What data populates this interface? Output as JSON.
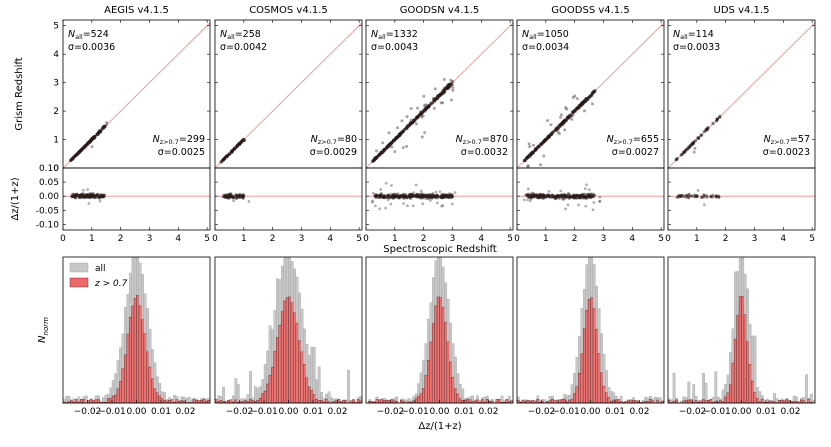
{
  "figure": {
    "shared_x_label": "Spectroscopic Redshift",
    "hist_x_label": "Δz/(1+z)"
  },
  "chart_data": [
    {
      "type": "scatter",
      "field": "AEGIS v4.1.5",
      "title": "AEGIS v4.1.5",
      "xlabel": "Spectroscopic Redshift",
      "ylabel": "Grism Redshift",
      "xlim": [
        0,
        5.1
      ],
      "ylim": [
        0,
        5.2
      ],
      "n_all_value": "524",
      "sigma_all": "σ=0.0036",
      "n_hi_value": "299",
      "sigma_hi": "σ=0.0025",
      "resid_ylabel": "Δz/(1+z)",
      "resid_ylim": [
        -0.12,
        0.1
      ],
      "hist_legend": [
        "all",
        "z > 0.7"
      ],
      "hist_ylabel": "N_norm",
      "hist_xlim": [
        -0.03,
        0.03
      ]
    },
    {
      "type": "scatter",
      "field": "COSMOS v4.1.5",
      "title": "COSMOS v4.1.5",
      "xlim": [
        0,
        5.1
      ],
      "ylim": [
        0,
        5.2
      ],
      "n_all_value": "258",
      "sigma_all": "σ=0.0042",
      "n_hi_value": "80",
      "sigma_hi": "σ=0.0029",
      "resid_ylim": [
        -0.12,
        0.1
      ],
      "hist_xlim": [
        -0.03,
        0.03
      ]
    },
    {
      "type": "scatter",
      "field": "GOODSN v4.1.5",
      "title": "GOODSN v4.1.5",
      "xlim": [
        0,
        5.1
      ],
      "ylim": [
        0,
        5.2
      ],
      "n_all_value": "1332",
      "sigma_all": "σ=0.0043",
      "n_hi_value": "870",
      "sigma_hi": "σ=0.0032",
      "resid_ylim": [
        -0.12,
        0.1
      ],
      "hist_xlim": [
        -0.03,
        0.03
      ]
    },
    {
      "type": "scatter",
      "field": "GOODSS v4.1.5",
      "title": "GOODSS v4.1.5",
      "xlim": [
        0,
        5.1
      ],
      "ylim": [
        0,
        5.2
      ],
      "n_all_value": "1050",
      "sigma_all": "σ=0.0034",
      "n_hi_value": "655",
      "sigma_hi": "σ=0.0027",
      "resid_ylim": [
        -0.12,
        0.1
      ],
      "hist_xlim": [
        -0.03,
        0.03
      ]
    },
    {
      "type": "scatter",
      "field": "UDS v4.1.5",
      "title": "UDS v4.1.5",
      "xlim": [
        0,
        5.1
      ],
      "ylim": [
        0,
        5.2
      ],
      "n_all_value": "114",
      "sigma_all": "σ=0.0033",
      "n_hi_value": "57",
      "sigma_hi": "σ=0.0023",
      "resid_ylim": [
        -0.12,
        0.1
      ],
      "hist_xlim": [
        -0.03,
        0.03
      ]
    }
  ],
  "ticks": {
    "scatter_y": [
      "0",
      "1",
      "2",
      "3",
      "4",
      "5"
    ],
    "scatter_x": [
      "0",
      "1",
      "2",
      "3",
      "4",
      "5"
    ],
    "resid_y": [
      "0.10",
      "0.05",
      "0.00",
      "-0.05",
      "-0.10"
    ],
    "hist_x": [
      "−0.02",
      "−0.01",
      "0.00",
      "0.01",
      "0.02"
    ]
  },
  "style": {
    "one_to_one_color": "#f08a8a",
    "point_color": "#2a1a1a",
    "hist_all_color": "#c8c8c8",
    "hist_hi_color": "#ee6a6a",
    "frame_color": "#000000"
  }
}
